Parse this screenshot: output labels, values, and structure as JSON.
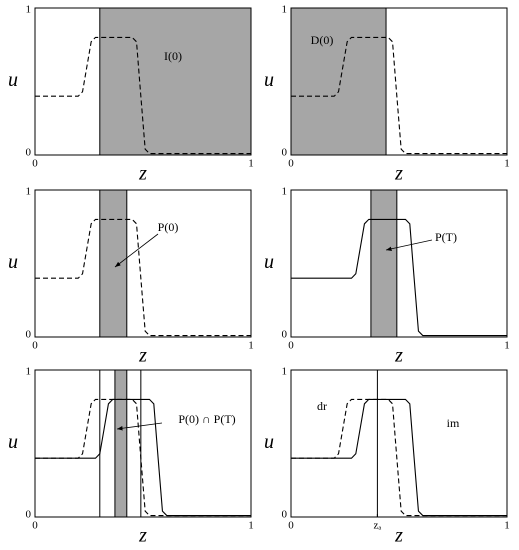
{
  "chart_data": [
    {
      "type": "line",
      "xlabel": "z",
      "ylabel": "u",
      "xlim": [
        0,
        1
      ],
      "ylim": [
        0,
        1
      ],
      "xticks": [
        0,
        1
      ],
      "yticks": [
        0,
        1
      ],
      "x": [
        0,
        0.2,
        0.22,
        0.24,
        0.26,
        0.28,
        0.3,
        0.32,
        0.34,
        0.36,
        0.38,
        0.45,
        0.47,
        0.49,
        0.51,
        0.53,
        0.55,
        0.57,
        0.59,
        0.61,
        0.63,
        1
      ],
      "series": [
        {
          "color": "#000000",
          "style": "dashed",
          "values": [
            0.4,
            0.4,
            0.43,
            0.6,
            0.77,
            0.8,
            0.8,
            0.8,
            0.8,
            0.8,
            0.8,
            0.8,
            0.77,
            0.4,
            0.04,
            0.01,
            0.01,
            0.01,
            0.01,
            0.01,
            0.01,
            0.01
          ]
        }
      ],
      "spans": [
        {
          "from": 0.3,
          "to": 1
        }
      ],
      "vlines": [
        0.3
      ],
      "annotations": [
        "I(0)"
      ]
    },
    {
      "type": "line",
      "xlabel": "z",
      "ylabel": "u",
      "xlim": [
        0,
        1
      ],
      "ylim": [
        0,
        1
      ],
      "xticks": [
        0,
        1
      ],
      "yticks": [
        0,
        1
      ],
      "x": [
        0,
        0.2,
        0.22,
        0.24,
        0.26,
        0.28,
        0.3,
        0.32,
        0.34,
        0.36,
        0.38,
        0.45,
        0.47,
        0.49,
        0.51,
        0.53,
        0.55,
        0.57,
        0.59,
        0.61,
        0.63,
        1
      ],
      "series": [
        {
          "color": "#000000",
          "style": "dashed",
          "values": [
            0.4,
            0.4,
            0.43,
            0.6,
            0.77,
            0.8,
            0.8,
            0.8,
            0.8,
            0.8,
            0.8,
            0.8,
            0.77,
            0.4,
            0.04,
            0.01,
            0.01,
            0.01,
            0.01,
            0.01,
            0.01,
            0.01
          ]
        }
      ],
      "spans": [
        {
          "from": 0,
          "to": 0.44
        }
      ],
      "vlines": [
        0.44
      ],
      "annotations": [
        "D(0)"
      ]
    },
    {
      "type": "line",
      "xlabel": "z",
      "ylabel": "u",
      "xlim": [
        0,
        1
      ],
      "ylim": [
        0,
        1
      ],
      "xticks": [
        0,
        1
      ],
      "yticks": [
        0,
        1
      ],
      "x": [
        0,
        0.2,
        0.22,
        0.24,
        0.26,
        0.28,
        0.3,
        0.32,
        0.34,
        0.36,
        0.38,
        0.45,
        0.47,
        0.49,
        0.51,
        0.53,
        0.55,
        0.57,
        0.59,
        0.61,
        0.63,
        1
      ],
      "series": [
        {
          "color": "#000000",
          "style": "dashed",
          "values": [
            0.4,
            0.4,
            0.43,
            0.6,
            0.77,
            0.8,
            0.8,
            0.8,
            0.8,
            0.8,
            0.8,
            0.8,
            0.77,
            0.4,
            0.04,
            0.01,
            0.01,
            0.01,
            0.01,
            0.01,
            0.01,
            0.01
          ]
        }
      ],
      "spans": [
        {
          "from": 0.3,
          "to": 0.425
        }
      ],
      "vlines": [
        0.3,
        0.425
      ],
      "annotations": [
        "P(0)"
      ]
    },
    {
      "type": "line",
      "xlabel": "z",
      "ylabel": "u",
      "xlim": [
        0,
        1
      ],
      "ylim": [
        0,
        1
      ],
      "xticks": [
        0,
        1
      ],
      "yticks": [
        0,
        1
      ],
      "x": [
        0,
        0.2,
        0.22,
        0.24,
        0.26,
        0.28,
        0.3,
        0.32,
        0.34,
        0.36,
        0.38,
        0.45,
        0.47,
        0.49,
        0.51,
        0.53,
        0.55,
        0.57,
        0.59,
        0.61,
        0.63,
        1
      ],
      "series": [
        {
          "color": "#000000",
          "style": "solid",
          "values": [
            0.4,
            0.4,
            0.4,
            0.4,
            0.4,
            0.4,
            0.43,
            0.6,
            0.77,
            0.8,
            0.8,
            0.8,
            0.8,
            0.8,
            0.8,
            0.8,
            0.77,
            0.4,
            0.04,
            0.01,
            0.01,
            0.01
          ]
        }
      ],
      "spans": [
        {
          "from": 0.37,
          "to": 0.49
        }
      ],
      "vlines": [
        0.37,
        0.49
      ],
      "annotations": [
        "P(T)"
      ]
    },
    {
      "type": "line",
      "xlabel": "z",
      "ylabel": "u",
      "xlim": [
        0,
        1
      ],
      "ylim": [
        0,
        1
      ],
      "xticks": [
        0,
        1
      ],
      "yticks": [
        0,
        1
      ],
      "x": [
        0,
        0.2,
        0.22,
        0.24,
        0.26,
        0.28,
        0.3,
        0.32,
        0.34,
        0.36,
        0.38,
        0.45,
        0.47,
        0.49,
        0.51,
        0.53,
        0.55,
        0.57,
        0.59,
        0.61,
        0.63,
        1
      ],
      "series": [
        {
          "color": "#000000",
          "style": "dashed",
          "values": [
            0.4,
            0.4,
            0.43,
            0.6,
            0.77,
            0.8,
            0.8,
            0.8,
            0.8,
            0.8,
            0.8,
            0.8,
            0.77,
            0.4,
            0.04,
            0.01,
            0.01,
            0.01,
            0.01,
            0.01,
            0.01,
            0.01
          ]
        },
        {
          "color": "#000000",
          "style": "solid",
          "values": [
            0.4,
            0.4,
            0.4,
            0.4,
            0.4,
            0.4,
            0.43,
            0.6,
            0.77,
            0.8,
            0.8,
            0.8,
            0.8,
            0.8,
            0.8,
            0.8,
            0.77,
            0.4,
            0.04,
            0.01,
            0.01,
            0.01
          ]
        }
      ],
      "spans": [
        {
          "from": 0.37,
          "to": 0.425
        }
      ],
      "vlines": [
        0.3,
        0.37,
        0.425,
        0.49
      ],
      "annotations": [
        "P(0) ∩ P(T)"
      ]
    },
    {
      "type": "line",
      "xlabel": "z",
      "ylabel": "u",
      "xlim": [
        0,
        1
      ],
      "ylim": [
        0,
        1
      ],
      "xticks": [
        0,
        {
          "value": 0.4,
          "label": "zₐ"
        },
        1
      ],
      "yticks": [
        0,
        1
      ],
      "x": [
        0,
        0.2,
        0.22,
        0.24,
        0.26,
        0.28,
        0.3,
        0.32,
        0.34,
        0.36,
        0.38,
        0.45,
        0.47,
        0.49,
        0.51,
        0.53,
        0.55,
        0.57,
        0.59,
        0.61,
        0.63,
        1
      ],
      "series": [
        {
          "color": "#000000",
          "style": "dashed",
          "values": [
            0.4,
            0.4,
            0.43,
            0.6,
            0.77,
            0.8,
            0.8,
            0.8,
            0.8,
            0.8,
            0.8,
            0.8,
            0.77,
            0.4,
            0.04,
            0.01,
            0.01,
            0.01,
            0.01,
            0.01,
            0.01,
            0.01
          ]
        },
        {
          "color": "#000000",
          "style": "solid",
          "values": [
            0.4,
            0.4,
            0.4,
            0.4,
            0.4,
            0.4,
            0.43,
            0.6,
            0.77,
            0.8,
            0.8,
            0.8,
            0.8,
            0.8,
            0.8,
            0.8,
            0.77,
            0.4,
            0.04,
            0.01,
            0.01,
            0.01
          ]
        }
      ],
      "spans": [],
      "vlines": [
        0.4
      ],
      "annotations": [
        "dr",
        "im"
      ]
    }
  ]
}
